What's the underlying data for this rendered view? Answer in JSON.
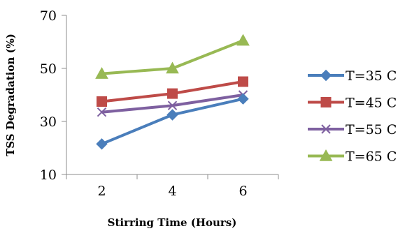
{
  "chart_data": {
    "type": "line",
    "title": "",
    "xlabel": "Stirring Time (Hours)",
    "ylabel": "TSS Degradation (%)",
    "x": [
      2,
      4,
      6
    ],
    "x_ticks": [
      "2",
      "4",
      "6"
    ],
    "ylim": [
      10,
      70
    ],
    "y_ticks": [
      "10",
      "30",
      "50",
      "70"
    ],
    "grid": false,
    "legend_position": "right",
    "series": [
      {
        "name": "T=35 C",
        "values": [
          21.5,
          32.5,
          38.5
        ],
        "color": "#4a7ebb",
        "marker": "diamond"
      },
      {
        "name": "T=45 C",
        "values": [
          37.5,
          40.5,
          45.0
        ],
        "color": "#be4b48",
        "marker": "square"
      },
      {
        "name": "T=55 C",
        "values": [
          33.5,
          36.0,
          40.0
        ],
        "color": "#7e60a0",
        "marker": "x"
      },
      {
        "name": "T=65 C",
        "values": [
          48.0,
          50.0,
          60.5
        ],
        "color": "#98b954",
        "marker": "triangle"
      }
    ]
  }
}
